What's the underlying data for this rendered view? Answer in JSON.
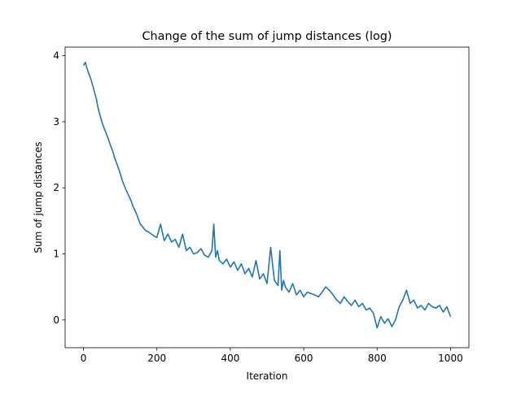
{
  "chart_data": {
    "type": "line",
    "title": "Change of the sum of jump distances (log)",
    "xlabel": "Iteration",
    "ylabel": "Sum of jump distances",
    "xlim": [
      -50,
      1050
    ],
    "ylim": [
      -0.42,
      4.13
    ],
    "xticks": [
      0,
      200,
      400,
      600,
      800,
      1000
    ],
    "yticks": [
      0,
      1,
      2,
      3,
      4
    ],
    "grid": false,
    "legend": "none",
    "line_color": "#1f77b4",
    "series": [
      {
        "x": [
          0,
          5,
          10,
          15,
          20,
          25,
          30,
          35,
          40,
          45,
          50,
          55,
          60,
          65,
          70,
          75,
          80,
          85,
          90,
          95,
          100,
          105,
          110,
          115,
          120,
          125,
          130,
          135,
          140,
          145,
          150,
          155,
          160,
          165,
          170,
          175,
          180,
          185,
          190,
          195,
          200,
          210,
          220,
          230,
          240,
          250,
          260,
          270,
          280,
          290,
          300,
          310,
          320,
          330,
          340,
          350,
          355,
          360,
          365,
          370,
          380,
          390,
          400,
          410,
          420,
          430,
          440,
          450,
          460,
          470,
          480,
          490,
          500,
          510,
          520,
          530,
          535,
          540,
          545,
          550,
          560,
          570,
          580,
          590,
          600,
          610,
          620,
          630,
          640,
          650,
          660,
          670,
          680,
          690,
          700,
          710,
          720,
          730,
          740,
          750,
          760,
          770,
          780,
          790,
          800,
          810,
          820,
          830,
          840,
          850,
          860,
          870,
          880,
          890,
          900,
          910,
          920,
          930,
          940,
          950,
          960,
          970,
          980,
          990,
          1000
        ],
        "y": [
          3.85,
          3.9,
          3.8,
          3.72,
          3.65,
          3.55,
          3.45,
          3.35,
          3.2,
          3.1,
          3.0,
          2.92,
          2.85,
          2.78,
          2.7,
          2.62,
          2.55,
          2.45,
          2.38,
          2.3,
          2.22,
          2.12,
          2.05,
          1.98,
          1.92,
          1.86,
          1.8,
          1.72,
          1.66,
          1.6,
          1.52,
          1.45,
          1.42,
          1.38,
          1.35,
          1.34,
          1.32,
          1.3,
          1.28,
          1.26,
          1.25,
          1.45,
          1.2,
          1.3,
          1.18,
          1.22,
          1.1,
          1.3,
          1.05,
          1.1,
          1.0,
          1.02,
          1.08,
          0.98,
          0.95,
          1.05,
          1.45,
          0.95,
          1.05,
          0.9,
          0.85,
          0.92,
          0.8,
          0.88,
          0.75,
          0.85,
          0.7,
          0.78,
          0.65,
          0.9,
          0.62,
          0.7,
          0.55,
          1.1,
          0.6,
          0.52,
          1.05,
          0.45,
          0.6,
          0.5,
          0.42,
          0.55,
          0.38,
          0.45,
          0.35,
          0.42,
          0.4,
          0.38,
          0.35,
          0.42,
          0.5,
          0.45,
          0.38,
          0.3,
          0.25,
          0.35,
          0.28,
          0.22,
          0.3,
          0.2,
          0.25,
          0.15,
          0.18,
          0.1,
          -0.12,
          0.05,
          -0.05,
          0.02,
          -0.1,
          0.0,
          0.2,
          0.3,
          0.45,
          0.25,
          0.3,
          0.18,
          0.22,
          0.15,
          0.25,
          0.2,
          0.18,
          0.22,
          0.12,
          0.2,
          0.05
        ]
      }
    ]
  }
}
